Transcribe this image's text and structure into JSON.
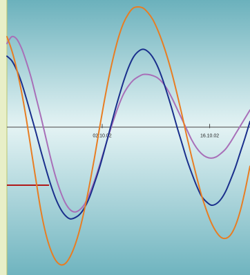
{
  "chart_data": {
    "type": "line",
    "title": "",
    "xlabel": "",
    "ylabel": "",
    "x_range": [
      0,
      100
    ],
    "y_range": [
      -1.3,
      1.1
    ],
    "x_ticks": [
      {
        "x": 39.2,
        "label": "02.10.02"
      },
      {
        "x": 83.4,
        "label": "16.10.02"
      }
    ],
    "grid": false,
    "legend": "none",
    "series": [
      {
        "color": "#1a2f8c",
        "x": [
          0,
          2,
          4,
          6,
          8,
          10,
          12,
          14,
          16,
          18,
          20,
          22,
          24,
          26,
          28,
          30,
          32,
          34,
          36,
          38,
          40,
          42,
          44,
          46,
          48,
          50,
          52,
          54,
          56,
          58,
          60,
          62,
          64,
          66,
          68,
          70,
          72,
          74,
          76,
          78,
          80,
          82,
          84,
          86,
          88,
          90,
          92,
          94,
          96,
          98,
          100
        ],
        "values": [
          0.61,
          0.57,
          0.49,
          0.38,
          0.24,
          0.09,
          -0.06,
          -0.22,
          -0.37,
          -0.51,
          -0.63,
          -0.72,
          -0.78,
          -0.81,
          -0.8,
          -0.77,
          -0.71,
          -0.62,
          -0.5,
          -0.37,
          -0.22,
          -0.06,
          0.1,
          0.25,
          0.39,
          0.51,
          0.6,
          0.65,
          0.67,
          0.65,
          0.6,
          0.52,
          0.41,
          0.28,
          0.14,
          -0.01,
          -0.15,
          -0.29,
          -0.41,
          -0.52,
          -0.61,
          -0.66,
          -0.69,
          -0.68,
          -0.64,
          -0.57,
          -0.47,
          -0.36,
          -0.23,
          -0.1,
          0.04
        ]
      },
      {
        "color": "#e87d22",
        "x": [
          0,
          2,
          4,
          6,
          8,
          10,
          12,
          14,
          16,
          18,
          20,
          22,
          24,
          26,
          28,
          30,
          32,
          34,
          36,
          38,
          40,
          42,
          44,
          46,
          48,
          50,
          52,
          54,
          56,
          58,
          60,
          62,
          64,
          66,
          68,
          70,
          72,
          74,
          76,
          78,
          80,
          82,
          84,
          86,
          88,
          90,
          92,
          94,
          96,
          98,
          100
        ],
        "values": [
          0.78,
          0.66,
          0.5,
          0.3,
          0.06,
          -0.21,
          -0.48,
          -0.74,
          -0.94,
          -1.08,
          -1.17,
          -1.21,
          -1.2,
          -1.14,
          -1.04,
          -0.9,
          -0.72,
          -0.51,
          -0.28,
          -0.03,
          0.21,
          0.43,
          0.62,
          0.78,
          0.9,
          0.98,
          1.03,
          1.04,
          1.03,
          0.99,
          0.93,
          0.84,
          0.73,
          0.6,
          0.45,
          0.28,
          0.1,
          -0.09,
          -0.27,
          -0.44,
          -0.6,
          -0.73,
          -0.84,
          -0.92,
          -0.97,
          -0.98,
          -0.95,
          -0.87,
          -0.74,
          -0.56,
          -0.35
        ]
      },
      {
        "color": "#a86fb8",
        "x": [
          0,
          2,
          4,
          6,
          8,
          10,
          12,
          14,
          16,
          18,
          20,
          22,
          24,
          26,
          28,
          30,
          32,
          34,
          36,
          38,
          40,
          42,
          44,
          46,
          48,
          50,
          52,
          54,
          56,
          58,
          60,
          62,
          64,
          66,
          68,
          70,
          72,
          74,
          76,
          78,
          80,
          82,
          84,
          86,
          88,
          90,
          92,
          94,
          96,
          98,
          100
        ],
        "values": [
          0.72,
          0.78,
          0.76,
          0.68,
          0.56,
          0.42,
          0.25,
          0.08,
          -0.1,
          -0.28,
          -0.44,
          -0.57,
          -0.67,
          -0.73,
          -0.75,
          -0.73,
          -0.68,
          -0.59,
          -0.48,
          -0.35,
          -0.21,
          -0.07,
          0.06,
          0.18,
          0.28,
          0.35,
          0.4,
          0.43,
          0.45,
          0.45,
          0.44,
          0.42,
          0.38,
          0.32,
          0.24,
          0.15,
          0.06,
          -0.03,
          -0.12,
          -0.19,
          -0.24,
          -0.27,
          -0.28,
          -0.27,
          -0.24,
          -0.2,
          -0.14,
          -0.07,
          0.0,
          0.07,
          0.14
        ]
      }
    ]
  }
}
